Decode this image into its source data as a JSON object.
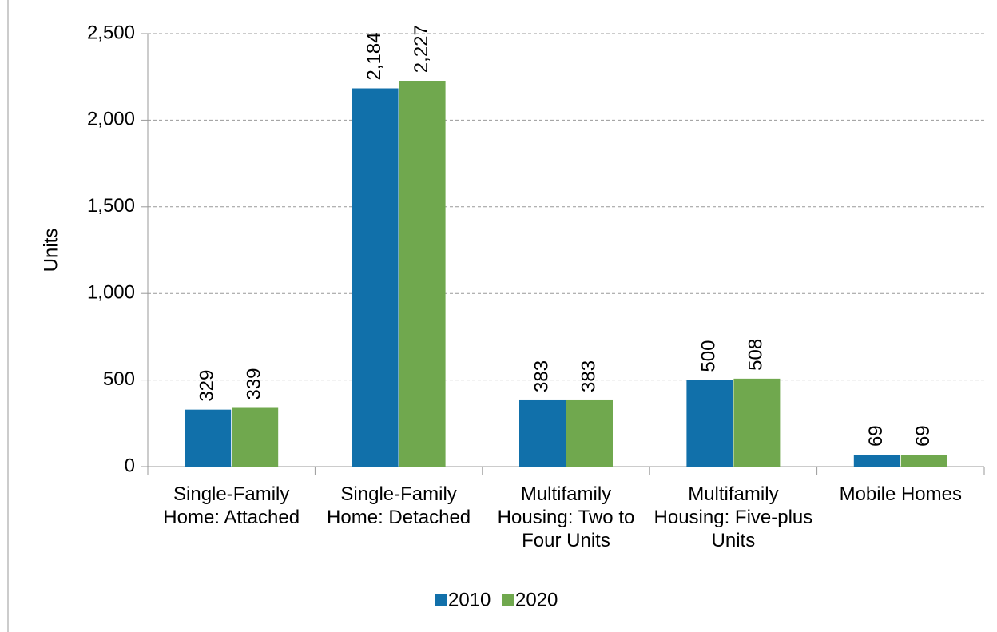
{
  "chart_data": {
    "type": "bar",
    "y_label": "Units",
    "categories": [
      "Single-Family Home: Attached",
      "Single-Family Home: Detached",
      "Multifamily Housing: Two to Four Units",
      "Multifamily Housing: Five-plus Units",
      "Mobile Homes"
    ],
    "series": [
      {
        "name": "2010",
        "color": "#1170aa",
        "values": [
          329,
          2184,
          383,
          500,
          69
        ],
        "value_labels": [
          "329",
          "2,184",
          "383",
          "500",
          "69"
        ]
      },
      {
        "name": "2020",
        "color": "#70a84e",
        "values": [
          339,
          2227,
          383,
          508,
          69
        ],
        "value_labels": [
          "339",
          "2,227",
          "383",
          "508",
          "69"
        ]
      }
    ],
    "ylim": [
      0,
      2500
    ],
    "yticks": [
      0,
      500,
      {
        "value": 1000,
        "label": "1,000"
      },
      {
        "value": 1500,
        "label": "1,500"
      },
      {
        "value": 2000,
        "label": "2,000"
      },
      {
        "value": 2500,
        "label": "2,500"
      }
    ],
    "grid": true,
    "legend": "bottom"
  }
}
